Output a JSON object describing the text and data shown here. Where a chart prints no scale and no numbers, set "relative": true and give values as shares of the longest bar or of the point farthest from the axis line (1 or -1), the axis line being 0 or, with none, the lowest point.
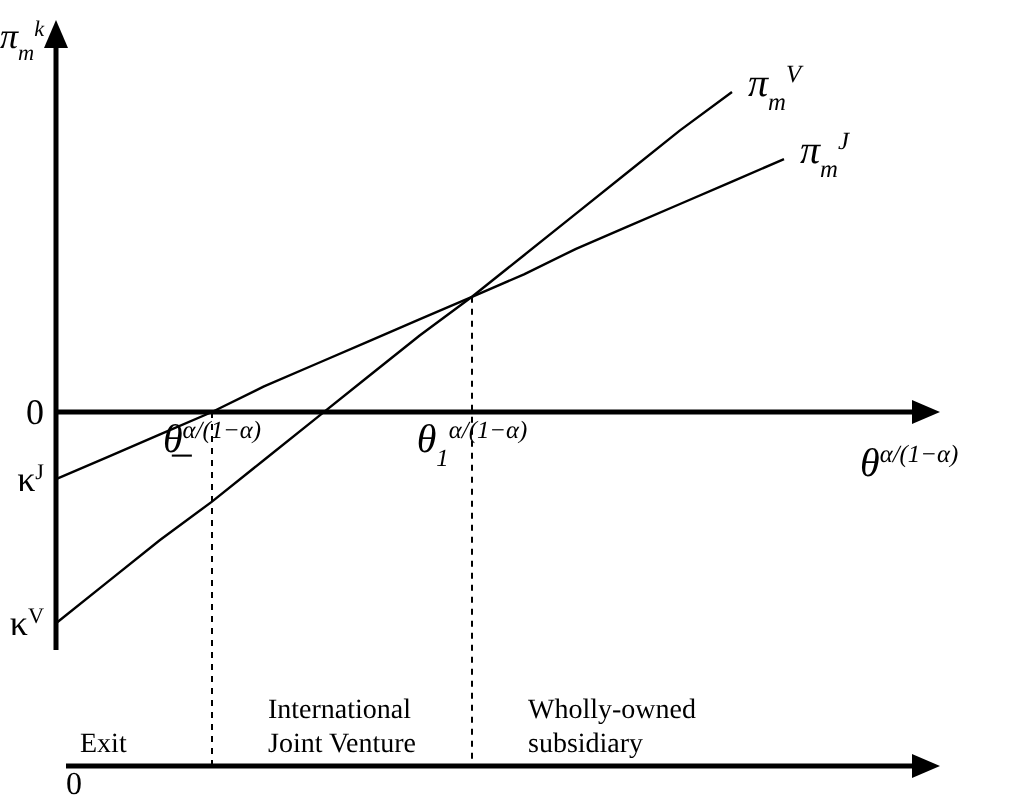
{
  "chart_data": {
    "type": "line",
    "relative": true,
    "ylabel": "π$_{m}$$^{k}$",
    "xlabel": "θ$^{α/(1−α)}$",
    "categories": [
      null,
      null,
      null,
      "θ̲$^{α/(1−α)}$",
      null,
      null,
      null,
      null,
      "θ$_{1}$$^{α/(1−α)}$",
      null,
      null,
      null,
      null,
      null,
      null
    ],
    "series": [
      {
        "name": "π$_{m}$$^{V}$",
        "color": "#000000",
        "values": [
          -0.66,
          -0.53,
          -0.4,
          -0.28,
          -0.15,
          -0.02,
          0.11,
          0.24,
          0.36,
          0.49,
          0.62,
          0.75,
          0.88,
          1,
          null
        ]
      },
      {
        "name": "π$_{m}$$^{J}$",
        "color": "#000000",
        "values": [
          -0.21,
          -0.14,
          -0.07,
          0,
          0.08,
          0.15,
          0.22,
          0.29,
          0.36,
          0.43,
          0.51,
          0.58,
          0.65,
          0.72,
          0.79
        ]
      }
    ],
    "line_style": "solid",
    "marker": "none",
    "ref_lines": [
      {
        "axis": "x",
        "value": "θ̲$^{α/(1−α)}$",
        "line_style": "dotted"
      },
      {
        "axis": "x",
        "value": "θ$_{1}$$^{α/(1−α)}$",
        "line_style": "dotted"
      }
    ],
    "annotations": [
      "0",
      "κ$^{J}$",
      "κ$^{V}$",
      "Exit",
      "International Joint Venture",
      "Wholly-owned subsidiary",
      "0"
    ]
  }
}
